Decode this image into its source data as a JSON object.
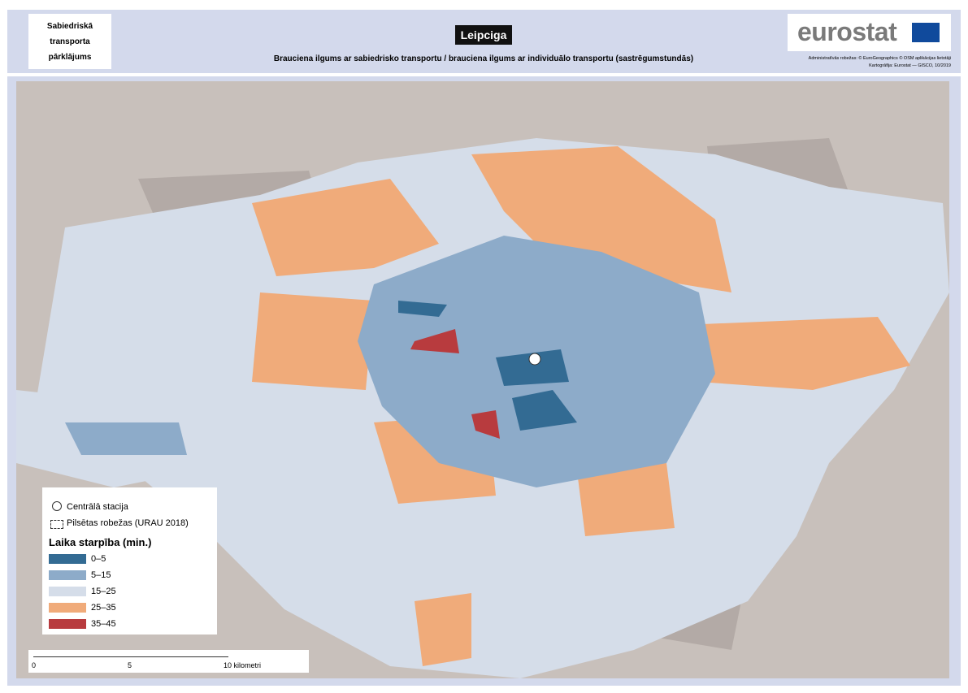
{
  "header": {
    "panel_label": "Sabiedriskā transporta pārklājums",
    "title": "Leipciga",
    "subtitle": "Brauciena ilgums ar sabiedrisko transportu / brauciena ilgums ar individuālo transportu (sastrēgumstundās)",
    "logo": "eurostat",
    "credits": [
      "Administratīvās robežas: © EuroGeographics © OSM aplikācijas lietotāji",
      "Kartogrāfija: Eurostat — GISCO, 10/2019"
    ]
  },
  "legend": {
    "symbols": [
      "Centrālā stacija",
      "Pilsētas robežas (URAU 2018)"
    ],
    "title": "Laika starpība (min.)",
    "classes": [
      {
        "label": "0–5",
        "color": "#336b93"
      },
      {
        "label": "5–15",
        "color": "#8dabc9"
      },
      {
        "label": "15–25",
        "color": "#d5dde9"
      },
      {
        "label": "25–35",
        "color": "#f0ab7a"
      },
      {
        "label": "35–45",
        "color": "#b83b3e"
      }
    ]
  },
  "scale_bar": {
    "labels": [
      "0",
      "5",
      "10 kilometri"
    ]
  }
}
